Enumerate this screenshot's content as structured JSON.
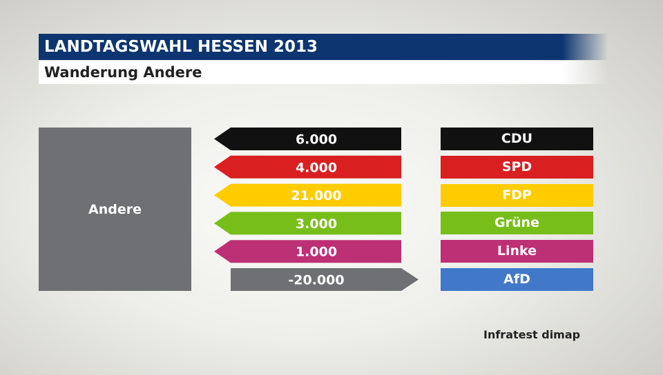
{
  "header": {
    "title": "LANDTAGSWAHL HESSEN 2013",
    "subtitle": "Wanderung Andere"
  },
  "source": "Infratest dimap",
  "chart_data": {
    "type": "bar",
    "source_party": "Andere",
    "categories": [
      "CDU",
      "SPD",
      "FDP",
      "Grüne",
      "Linke",
      "AfD"
    ],
    "values": [
      6000,
      4000,
      21000,
      3000,
      1000,
      -20000
    ],
    "labels": [
      "6.000",
      "4.000",
      "21.000",
      "3.000",
      "1.000",
      "-20.000"
    ],
    "colors": [
      "#111111",
      "#d91f1f",
      "#ffcc00",
      "#78be1a",
      "#be3075",
      "#6f7073"
    ],
    "party_colors": [
      "#111111",
      "#d91f1f",
      "#ffcc00",
      "#78be1a",
      "#be3075",
      "#4178c8"
    ]
  }
}
